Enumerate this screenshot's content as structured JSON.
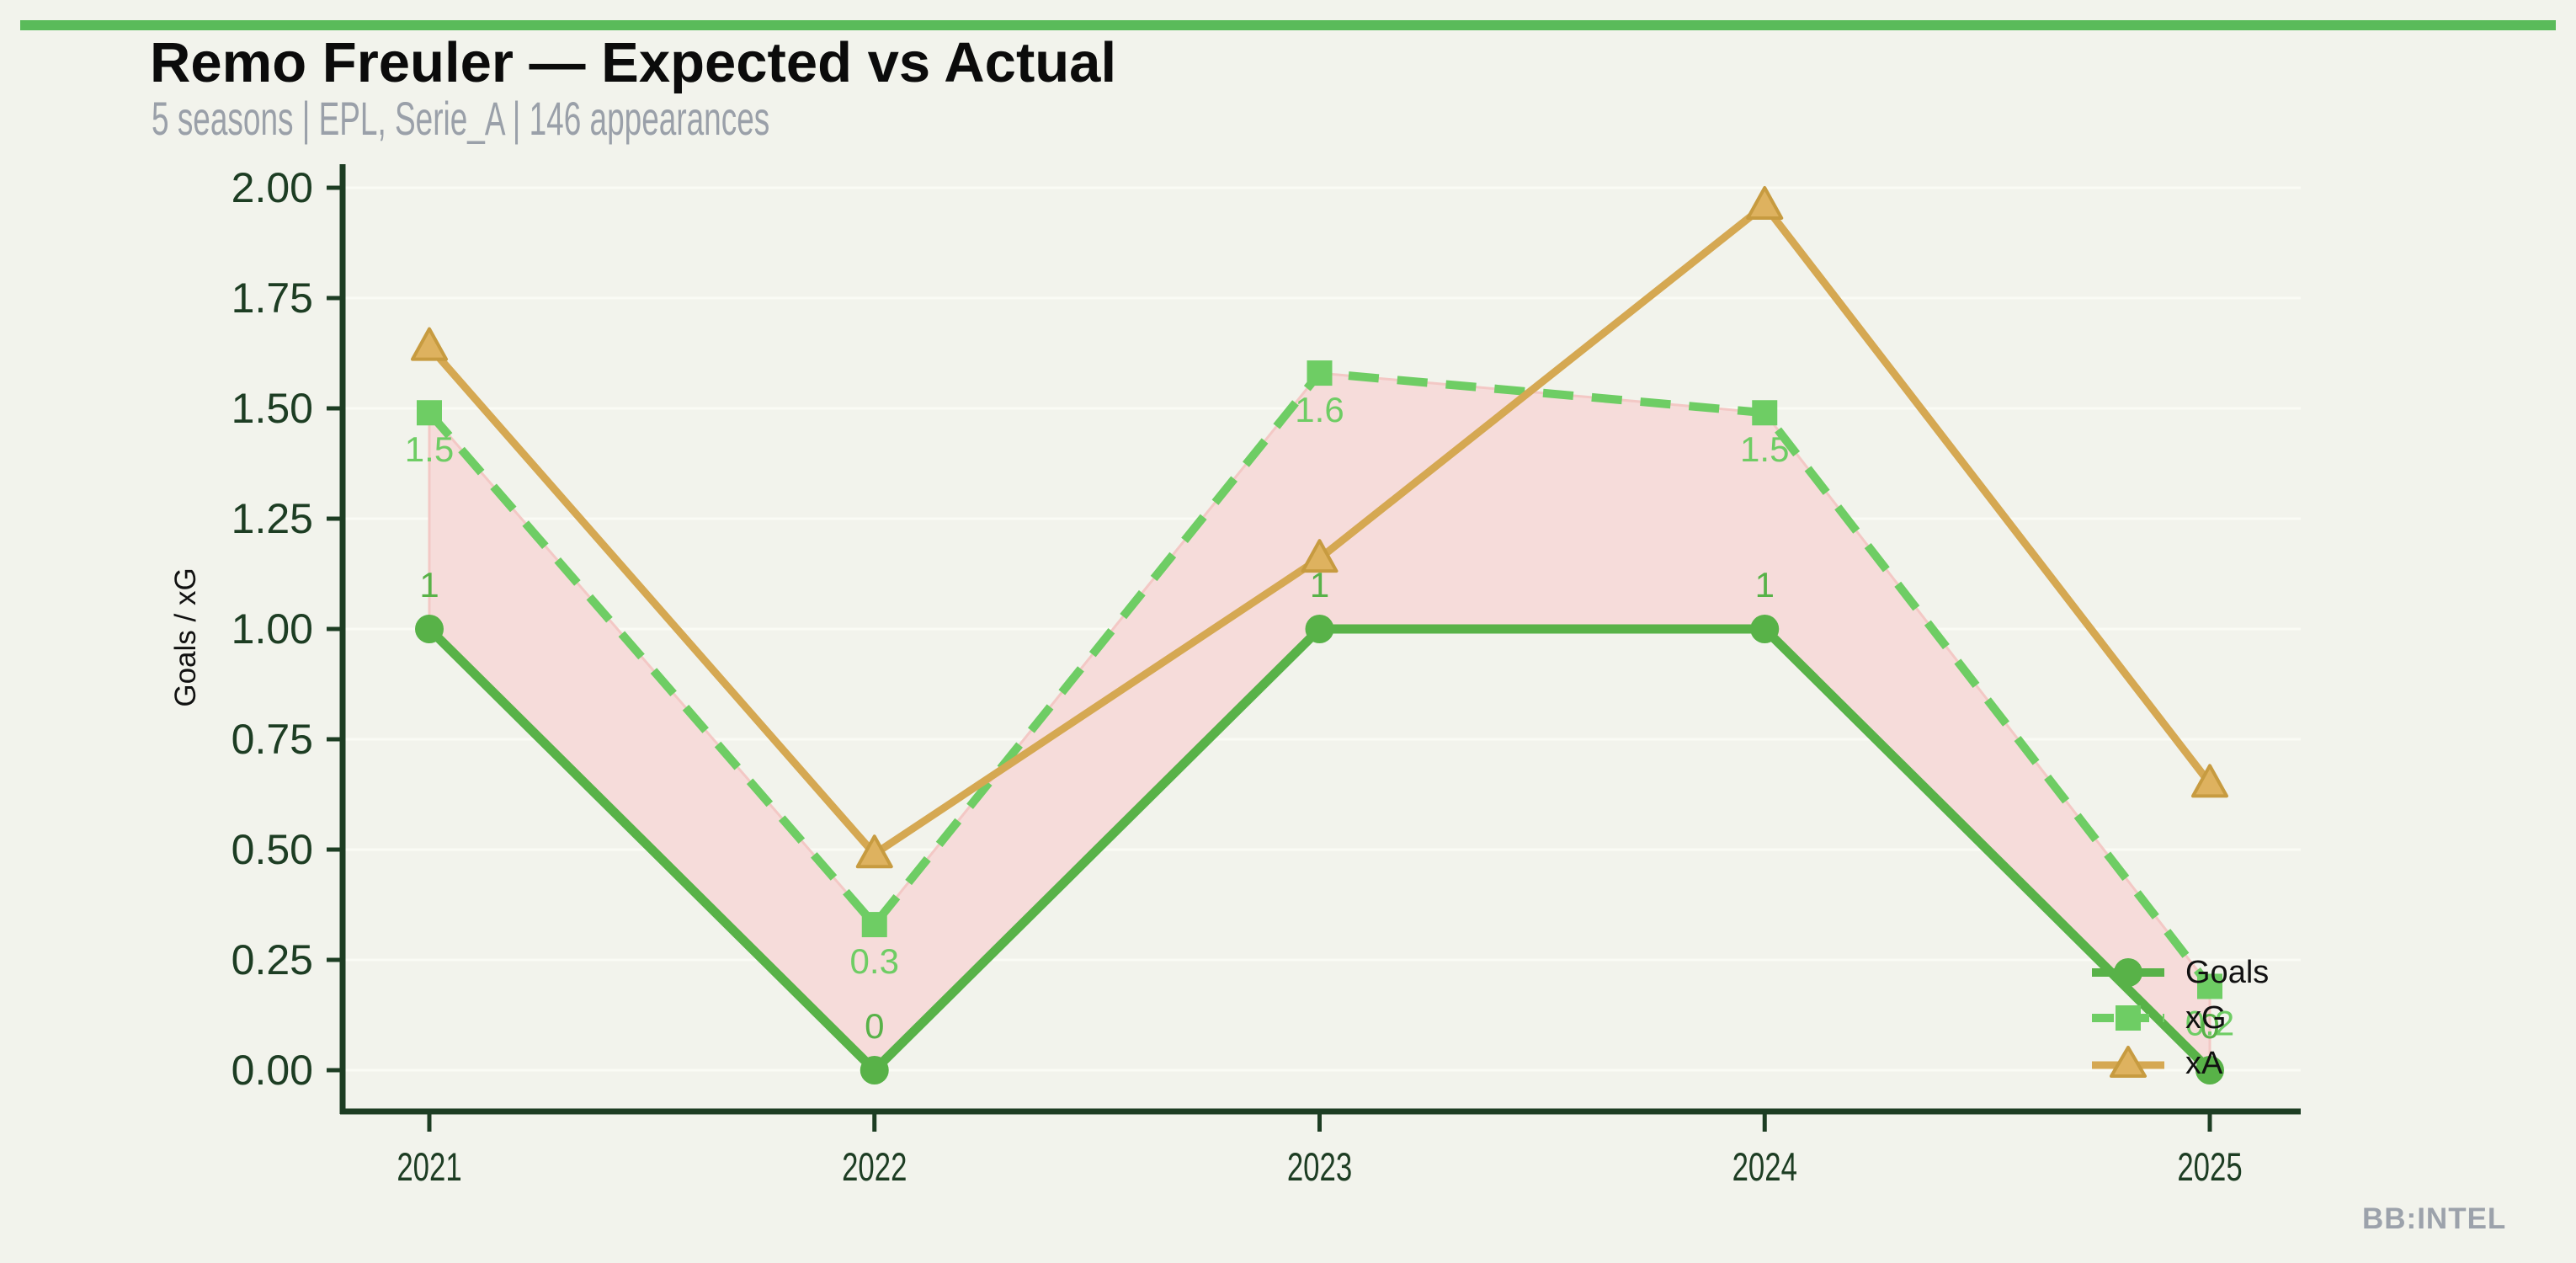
{
  "page": {
    "background_color": "#f2f3ec",
    "accent_bar_color": "#5abb5a"
  },
  "header": {
    "title": "Remo Freuler — Expected vs Actual",
    "subtitle": "5 seasons | EPL, Serie_A | 146 appearances"
  },
  "watermark": "BB:INTEL",
  "legend": {
    "position": "lower right",
    "items": [
      {
        "label": "Goals"
      },
      {
        "label": "xG"
      },
      {
        "label": "xA"
      }
    ]
  },
  "chart_data": {
    "type": "line",
    "title": "Remo Freuler — Expected vs Actual",
    "subtitle": "5 seasons | EPL, Serie_A | 146 appearances",
    "categories": [
      "2021",
      "2022",
      "2023",
      "2024",
      "2025"
    ],
    "series": [
      {
        "name": "Goals",
        "values": [
          1,
          0,
          1,
          1,
          0
        ],
        "point_labels": [
          "1",
          "0",
          "1",
          "1",
          "0"
        ],
        "color": "#58b248",
        "marker": "circle",
        "line_style": "solid"
      },
      {
        "name": "xG",
        "values": [
          1.49,
          0.33,
          1.58,
          1.49,
          0.19
        ],
        "point_labels": [
          "1.5",
          "0.3",
          "1.6",
          "1.5",
          "0.2"
        ],
        "color": "#6ecd64",
        "marker": "square",
        "line_style": "dashed"
      },
      {
        "name": "xA",
        "values": [
          1.64,
          0.49,
          1.16,
          1.96,
          0.65
        ],
        "point_labels": [
          "",
          "",
          "",
          "",
          ""
        ],
        "color": "#d5a852",
        "marker": "triangle",
        "line_style": "solid"
      }
    ],
    "xlabel": "",
    "ylabel": "Goals / xG",
    "ylim": [
      0,
      2
    ],
    "yticks": [
      "0.00",
      "0.25",
      "0.50",
      "0.75",
      "1.00",
      "1.25",
      "1.50",
      "1.75",
      "2.00"
    ],
    "xticks": [
      "2021",
      "2022",
      "2023",
      "2024",
      "2025"
    ],
    "grid": true,
    "grid_color": "#fafbf5",
    "axis_color": "#1d3d23",
    "tick_label_color": "#1d3d23",
    "fill_between": {
      "upper": "xG",
      "lower": "Goals",
      "fill_color": "#f6dcda",
      "edge_color": "#f3c8c5"
    },
    "legend_position": "lower right"
  }
}
